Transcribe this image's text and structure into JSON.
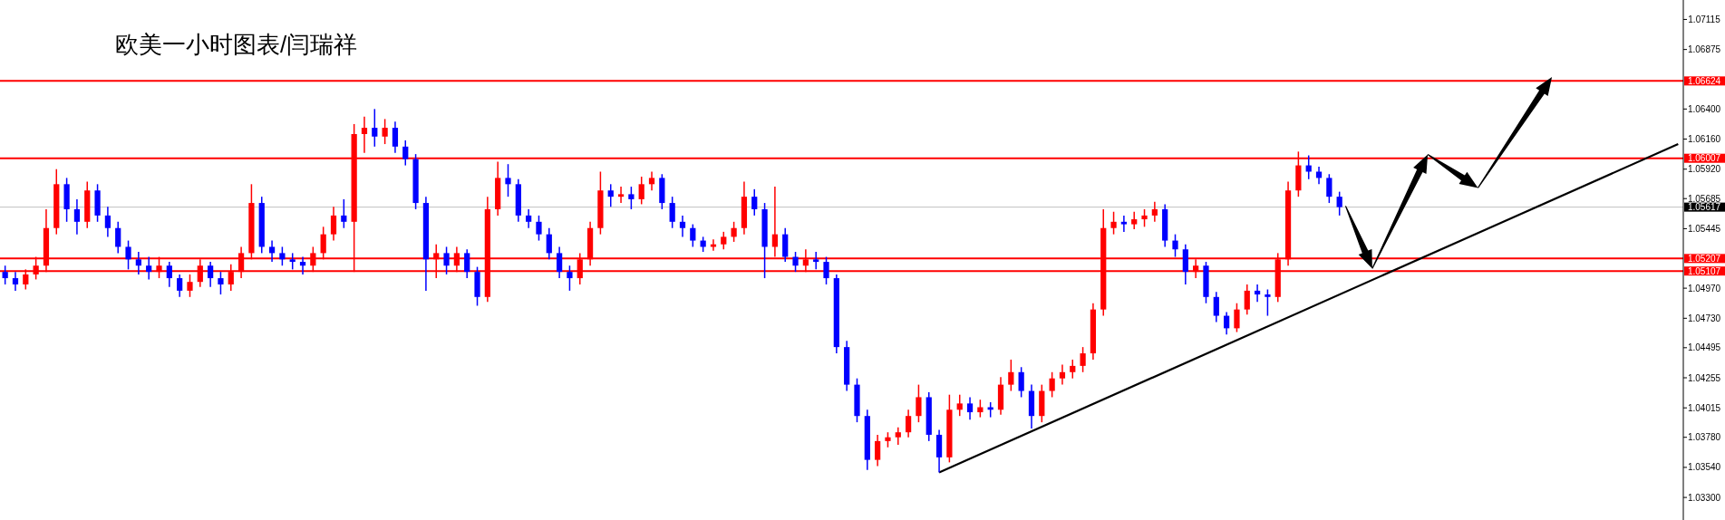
{
  "chart_data": {
    "type": "candlestick",
    "title": "欧美一小时图表/闫瑞祥",
    "categories": [
      null,
      null,
      null,
      null,
      null,
      null,
      null,
      null,
      null,
      null,
      null,
      null,
      null,
      null,
      null,
      null,
      null,
      null,
      null,
      null,
      null,
      null,
      null,
      null,
      null,
      null,
      null,
      null,
      null,
      null,
      null,
      null,
      null,
      null,
      null,
      null,
      null,
      null,
      null,
      null,
      null,
      null,
      null,
      null,
      null,
      null,
      null,
      null,
      null,
      null,
      null,
      null,
      null,
      null,
      null,
      null,
      null,
      null,
      null,
      null,
      null,
      null,
      null,
      null,
      null,
      null,
      null,
      null,
      null,
      null,
      null,
      null,
      null,
      null,
      null,
      null,
      null,
      null,
      null,
      null,
      null,
      null,
      null,
      null,
      null,
      null,
      null,
      null,
      null,
      null,
      null,
      null,
      null,
      null,
      null,
      null,
      null,
      null,
      null,
      null,
      null,
      null,
      null,
      null,
      null,
      null,
      null,
      null,
      null,
      null,
      null,
      null,
      null,
      null,
      null,
      null,
      null,
      null,
      null,
      null,
      null,
      null,
      null,
      null,
      null,
      null,
      null,
      null,
      null,
      null,
      null,
      null,
      null,
      null,
      null,
      null,
      null,
      null,
      null,
      null,
      null,
      null,
      null,
      null,
      null,
      null,
      null,
      null,
      null,
      null,
      null,
      null,
      null,
      null,
      null,
      null,
      null,
      null,
      null,
      null,
      null,
      null,
      null,
      null
    ],
    "ohlc": [
      [
        1.051,
        1.0515,
        1.05,
        1.0505
      ],
      [
        1.0505,
        1.051,
        1.0495,
        1.05
      ],
      [
        1.05,
        1.0512,
        1.0496,
        1.0508
      ],
      [
        1.0508,
        1.0522,
        1.0504,
        1.0515
      ],
      [
        1.0515,
        1.056,
        1.051,
        1.0545
      ],
      [
        1.0545,
        1.0592,
        1.054,
        1.058
      ],
      [
        1.058,
        1.0585,
        1.055,
        1.056
      ],
      [
        1.056,
        1.0568,
        1.054,
        1.055
      ],
      [
        1.055,
        1.0582,
        1.0545,
        1.0575
      ],
      [
        1.0575,
        1.058,
        1.055,
        1.0555
      ],
      [
        1.0555,
        1.0562,
        1.0538,
        1.0545
      ],
      [
        1.0545,
        1.055,
        1.0525,
        1.053
      ],
      [
        1.053,
        1.0535,
        1.0512,
        1.052
      ],
      [
        1.052,
        1.0526,
        1.0508,
        1.0515
      ],
      [
        1.0515,
        1.0522,
        1.0504,
        1.051
      ],
      [
        1.051,
        1.0522,
        1.0505,
        1.0515
      ],
      [
        1.0515,
        1.0518,
        1.0498,
        1.0505
      ],
      [
        1.0505,
        1.0508,
        1.049,
        1.0495
      ],
      [
        1.0495,
        1.0508,
        1.049,
        1.0502
      ],
      [
        1.0502,
        1.052,
        1.0498,
        1.0515
      ],
      [
        1.0515,
        1.0518,
        1.0498,
        1.0505
      ],
      [
        1.0505,
        1.051,
        1.0492,
        1.05
      ],
      [
        1.05,
        1.0516,
        1.0495,
        1.051
      ],
      [
        1.051,
        1.053,
        1.0505,
        1.0525
      ],
      [
        1.0525,
        1.058,
        1.052,
        1.0565
      ],
      [
        1.0565,
        1.057,
        1.0525,
        1.053
      ],
      [
        1.053,
        1.0535,
        1.0518,
        1.0525
      ],
      [
        1.0525,
        1.053,
        1.0515,
        1.052
      ],
      [
        1.052,
        1.0525,
        1.0512,
        1.0518
      ],
      [
        1.0518,
        1.0522,
        1.0508,
        1.0515
      ],
      [
        1.0515,
        1.053,
        1.051,
        1.0525
      ],
      [
        1.0525,
        1.0546,
        1.052,
        1.054
      ],
      [
        1.054,
        1.0562,
        1.0535,
        1.0555
      ],
      [
        1.0555,
        1.0568,
        1.0545,
        1.055
      ],
      [
        1.055,
        1.0628,
        1.051,
        1.062
      ],
      [
        1.062,
        1.0634,
        1.0605,
        1.0625
      ],
      [
        1.0625,
        1.064,
        1.061,
        1.0618
      ],
      [
        1.0618,
        1.0632,
        1.0612,
        1.0625
      ],
      [
        1.0625,
        1.063,
        1.0605,
        1.061
      ],
      [
        1.061,
        1.0615,
        1.0595,
        1.06
      ],
      [
        1.06,
        1.0604,
        1.056,
        1.0565
      ],
      [
        1.0565,
        1.057,
        1.0495,
        1.052
      ],
      [
        1.052,
        1.0532,
        1.0505,
        1.0525
      ],
      [
        1.0525,
        1.053,
        1.0508,
        1.0515
      ],
      [
        1.0515,
        1.053,
        1.051,
        1.0525
      ],
      [
        1.0525,
        1.0528,
        1.0505,
        1.051
      ],
      [
        1.051,
        1.0514,
        1.0483,
        1.049
      ],
      [
        1.049,
        1.057,
        1.0486,
        1.056
      ],
      [
        1.056,
        1.0598,
        1.0555,
        1.0585
      ],
      [
        1.0585,
        1.0596,
        1.057,
        1.058
      ],
      [
        1.058,
        1.0584,
        1.055,
        1.0555
      ],
      [
        1.0555,
        1.056,
        1.0545,
        1.055
      ],
      [
        1.055,
        1.0555,
        1.0535,
        1.054
      ],
      [
        1.054,
        1.0545,
        1.052,
        1.0525
      ],
      [
        1.0525,
        1.053,
        1.0505,
        1.051
      ],
      [
        1.051,
        1.0515,
        1.0495,
        1.0505
      ],
      [
        1.0505,
        1.0525,
        1.05,
        1.052
      ],
      [
        1.052,
        1.055,
        1.0515,
        1.0545
      ],
      [
        1.0545,
        1.059,
        1.054,
        1.0575
      ],
      [
        1.0575,
        1.058,
        1.0562,
        1.057
      ],
      [
        1.057,
        1.0578,
        1.0565,
        1.0572
      ],
      [
        1.0572,
        1.0578,
        1.056,
        1.0568
      ],
      [
        1.0568,
        1.0586,
        1.0564,
        1.058
      ],
      [
        1.058,
        1.059,
        1.0575,
        1.0585
      ],
      [
        1.0585,
        1.0588,
        1.056,
        1.0565
      ],
      [
        1.0565,
        1.057,
        1.0545,
        1.055
      ],
      [
        1.055,
        1.0555,
        1.0538,
        1.0545
      ],
      [
        1.0545,
        1.0548,
        1.053,
        1.0535
      ],
      [
        1.0535,
        1.0538,
        1.0526,
        1.053
      ],
      [
        1.053,
        1.0536,
        1.0527,
        1.0532
      ],
      [
        1.0532,
        1.0542,
        1.0528,
        1.0538
      ],
      [
        1.0538,
        1.055,
        1.0534,
        1.0545
      ],
      [
        1.0545,
        1.0582,
        1.054,
        1.057
      ],
      [
        1.057,
        1.0576,
        1.0555,
        1.056
      ],
      [
        1.056,
        1.0565,
        1.0505,
        1.053
      ],
      [
        1.053,
        1.0578,
        1.0522,
        1.054
      ],
      [
        1.054,
        1.0545,
        1.0518,
        1.0522
      ],
      [
        1.0522,
        1.0526,
        1.051,
        1.0515
      ],
      [
        1.0515,
        1.0528,
        1.051,
        1.052
      ],
      [
        1.052,
        1.0526,
        1.0512,
        1.0518
      ],
      [
        1.0518,
        1.0522,
        1.05,
        1.0505
      ],
      [
        1.0505,
        1.0508,
        1.0445,
        1.045
      ],
      [
        1.045,
        1.0455,
        1.0415,
        1.042
      ],
      [
        1.042,
        1.0425,
        1.039,
        1.0395
      ],
      [
        1.0395,
        1.04,
        1.0352,
        1.036
      ],
      [
        1.036,
        1.038,
        1.0355,
        1.0375
      ],
      [
        1.0375,
        1.0382,
        1.037,
        1.0378
      ],
      [
        1.0378,
        1.0386,
        1.0372,
        1.0382
      ],
      [
        1.0382,
        1.04,
        1.0378,
        1.0395
      ],
      [
        1.0395,
        1.042,
        1.039,
        1.041
      ],
      [
        1.041,
        1.0414,
        1.0375,
        1.038
      ],
      [
        1.038,
        1.0384,
        1.035,
        1.0362
      ],
      [
        1.0362,
        1.0412,
        1.0358,
        1.04
      ],
      [
        1.04,
        1.0412,
        1.0395,
        1.0405
      ],
      [
        1.0405,
        1.041,
        1.0392,
        1.0398
      ],
      [
        1.0398,
        1.0408,
        1.0394,
        1.0402
      ],
      [
        1.0402,
        1.0406,
        1.0394,
        1.04
      ],
      [
        1.04,
        1.0426,
        1.0396,
        1.042
      ],
      [
        1.042,
        1.044,
        1.0415,
        1.043
      ],
      [
        1.043,
        1.0434,
        1.041,
        1.0415
      ],
      [
        1.0415,
        1.042,
        1.0385,
        1.0395
      ],
      [
        1.0395,
        1.042,
        1.039,
        1.0415
      ],
      [
        1.0415,
        1.043,
        1.041,
        1.0425
      ],
      [
        1.0425,
        1.0436,
        1.042,
        1.043
      ],
      [
        1.043,
        1.044,
        1.0425,
        1.0435
      ],
      [
        1.0435,
        1.045,
        1.043,
        1.0445
      ],
      [
        1.0445,
        1.0485,
        1.044,
        1.048
      ],
      [
        1.048,
        1.056,
        1.0475,
        1.0545
      ],
      [
        1.0545,
        1.0558,
        1.054,
        1.055
      ],
      [
        1.055,
        1.0555,
        1.0542,
        1.0548
      ],
      [
        1.0548,
        1.0558,
        1.0544,
        1.0552
      ],
      [
        1.0552,
        1.056,
        1.0546,
        1.0555
      ],
      [
        1.0555,
        1.0566,
        1.055,
        1.056
      ],
      [
        1.056,
        1.0564,
        1.053,
        1.0535
      ],
      [
        1.0535,
        1.054,
        1.0522,
        1.0528
      ],
      [
        1.0528,
        1.0532,
        1.05,
        1.051
      ],
      [
        1.051,
        1.052,
        1.0505,
        1.0515
      ],
      [
        1.0515,
        1.0518,
        1.0485,
        1.049
      ],
      [
        1.049,
        1.0494,
        1.047,
        1.0475
      ],
      [
        1.0475,
        1.0478,
        1.046,
        1.0465
      ],
      [
        1.0465,
        1.0485,
        1.0462,
        1.048
      ],
      [
        1.048,
        1.05,
        1.0476,
        1.0495
      ],
      [
        1.0495,
        1.05,
        1.0486,
        1.0492
      ],
      [
        1.0492,
        1.0496,
        1.0475,
        1.049
      ],
      [
        1.049,
        1.0525,
        1.0486,
        1.052
      ],
      [
        1.052,
        1.0582,
        1.0515,
        1.0575
      ],
      [
        1.0575,
        1.0606,
        1.057,
        1.0595
      ],
      [
        1.0595,
        1.0603,
        1.0584,
        1.059
      ],
      [
        1.059,
        1.0594,
        1.058,
        1.0585
      ],
      [
        1.0585,
        1.0588,
        1.0565,
        1.057
      ],
      [
        1.057,
        1.0574,
        1.0555,
        1.05617
      ],
      null,
      null,
      null,
      null,
      null,
      null,
      null,
      null,
      null,
      null,
      null,
      null,
      null,
      null,
      null,
      null,
      null,
      null,
      null,
      null,
      null,
      null,
      null,
      null,
      null,
      null,
      null,
      null,
      null,
      null,
      null,
      null,
      null
    ],
    "colors": [
      "#0000ff",
      "#0000ff",
      "#ff0000",
      "#ff0000",
      "#ff0000",
      "#ff0000",
      "#0000ff",
      "#0000ff",
      "#ff0000",
      "#0000ff",
      "#0000ff",
      "#0000ff",
      "#0000ff",
      "#0000ff",
      "#0000ff",
      "#ff0000",
      "#0000ff",
      "#0000ff",
      "#ff0000",
      "#ff0000",
      "#0000ff",
      "#0000ff",
      "#ff0000",
      "#ff0000",
      "#ff0000",
      "#0000ff",
      "#0000ff",
      "#0000ff",
      "#0000ff",
      "#0000ff",
      "#ff0000",
      "#ff0000",
      "#ff0000",
      "#0000ff",
      "#ff0000",
      "#ff0000",
      "#0000ff",
      "#ff0000",
      "#0000ff",
      "#0000ff",
      "#0000ff",
      "#0000ff",
      "#ff0000",
      "#0000ff",
      "#ff0000",
      "#0000ff",
      "#0000ff",
      "#ff0000",
      "#ff0000",
      "#0000ff",
      "#0000ff",
      "#0000ff",
      "#0000ff",
      "#0000ff",
      "#0000ff",
      "#0000ff",
      "#ff0000",
      "#ff0000",
      "#ff0000",
      "#0000ff",
      "#ff0000",
      "#0000ff",
      "#ff0000",
      "#ff0000",
      "#0000ff",
      "#0000ff",
      "#0000ff",
      "#0000ff",
      "#0000ff",
      "#ff0000",
      "#ff0000",
      "#ff0000",
      "#ff0000",
      "#0000ff",
      "#0000ff",
      "#ff0000",
      "#0000ff",
      "#0000ff",
      "#ff0000",
      "#0000ff",
      "#0000ff",
      "#0000ff",
      "#0000ff",
      "#0000ff",
      "#0000ff",
      "#ff0000",
      "#ff0000",
      "#ff0000",
      "#ff0000",
      "#ff0000",
      "#0000ff",
      "#0000ff",
      "#ff0000",
      "#ff0000",
      "#0000ff",
      "#ff0000",
      "#0000ff",
      "#ff0000",
      "#ff0000",
      "#0000ff",
      "#0000ff",
      "#ff0000",
      "#ff0000",
      "#ff0000",
      "#ff0000",
      "#ff0000",
      "#ff0000",
      "#ff0000",
      "#ff0000",
      "#0000ff",
      "#ff0000",
      "#ff0000",
      "#ff0000",
      "#0000ff",
      "#0000ff",
      "#0000ff",
      "#ff0000",
      "#0000ff",
      "#0000ff",
      "#0000ff",
      "#ff0000",
      "#ff0000",
      "#0000ff",
      "#0000ff",
      "#ff0000",
      "#ff0000",
      "#ff0000",
      "#0000ff",
      "#0000ff",
      "#0000ff",
      "#0000ff",
      null,
      null,
      null,
      null,
      null,
      null,
      null,
      null,
      null,
      null,
      null,
      null,
      null,
      null,
      null,
      null,
      null,
      null,
      null,
      null,
      null,
      null,
      null,
      null,
      null,
      null,
      null,
      null,
      null,
      null,
      null,
      null,
      null
    ],
    "ylim": [
      1.0312,
      1.0727
    ],
    "yticks": [
      {
        "value": 1.07115,
        "label": "1.07115"
      },
      {
        "value": 1.06875,
        "label": "1.06875"
      },
      {
        "value": 1.064,
        "label": "1.06400"
      },
      {
        "value": 1.0616,
        "label": "1.06160"
      },
      {
        "value": 1.0592,
        "label": "1.05920"
      },
      {
        "value": 1.05685,
        "label": "1.05685"
      },
      {
        "value": 1.05445,
        "label": "1.05445"
      },
      {
        "value": 1.0497,
        "label": "1.04970"
      },
      {
        "value": 1.0473,
        "label": "1.04730"
      },
      {
        "value": 1.04495,
        "label": "1.04495"
      },
      {
        "value": 1.04255,
        "label": "1.04255"
      },
      {
        "value": 1.04015,
        "label": "1.04015"
      },
      {
        "value": 1.0378,
        "label": "1.03780"
      },
      {
        "value": 1.0354,
        "label": "1.03540"
      },
      {
        "value": 1.033,
        "label": "1.03300"
      }
    ],
    "tick_labels": "y",
    "ref_lines": [
      {
        "axis": "y",
        "value": 1.06624,
        "label": "1.06624",
        "color": "#ff0000"
      },
      {
        "axis": "y",
        "value": 1.06007,
        "label": "1.06007",
        "color": "#ff0000"
      },
      {
        "axis": "y",
        "value": 1.05617,
        "label": "1.05617",
        "color": "#c0c0c0"
      },
      {
        "axis": "y",
        "value": 1.05207,
        "label": "1.05207",
        "color": "#ff0000"
      },
      {
        "axis": "y",
        "value": 1.05107,
        "label": "1.05107",
        "color": "#ff0000"
      }
    ],
    "series": [
      {
        "type": "line",
        "values": [
          null,
          null,
          null,
          null,
          null,
          null,
          null,
          null,
          null,
          null,
          null,
          null,
          null,
          null,
          null,
          null,
          null,
          null,
          null,
          null,
          null,
          null,
          null,
          null,
          null,
          null,
          null,
          null,
          null,
          null,
          null,
          null,
          null,
          null,
          null,
          null,
          null,
          null,
          null,
          null,
          null,
          null,
          null,
          null,
          null,
          null,
          null,
          null,
          null,
          null,
          null,
          null,
          null,
          null,
          null,
          null,
          null,
          null,
          null,
          null,
          null,
          null,
          null,
          null,
          null,
          null,
          null,
          null,
          null,
          null,
          null,
          null,
          null,
          null,
          null,
          null,
          null,
          null,
          null,
          null,
          null,
          null,
          null,
          null,
          null,
          null,
          null,
          null,
          null,
          null,
          null,
          1.035,
          null,
          null,
          null,
          null,
          null,
          null,
          null,
          null,
          null,
          null,
          null,
          null,
          null,
          null,
          null,
          null,
          null,
          null,
          null,
          null,
          null,
          null,
          null,
          null,
          null,
          null,
          null,
          null,
          null,
          null,
          null,
          null,
          null,
          null,
          null,
          null,
          null,
          null,
          null,
          null,
          null,
          null,
          null,
          null,
          null,
          null,
          null,
          null,
          null,
          null,
          null,
          null,
          null,
          null,
          null,
          null,
          null,
          null,
          null,
          null,
          null,
          null,
          null,
          null,
          null,
          null,
          null,
          null,
          null,
          null,
          null,
          1.0612
        ],
        "color": "#000000"
      }
    ]
  }
}
